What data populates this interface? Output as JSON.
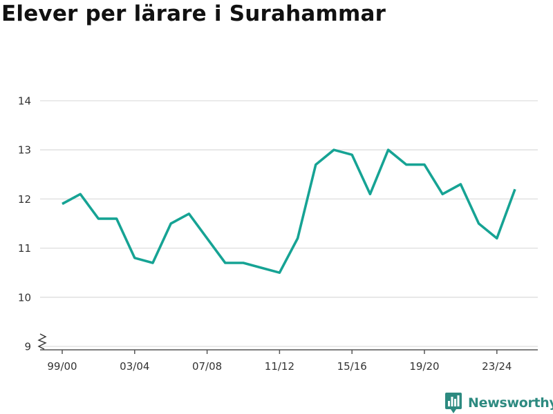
{
  "chart_data": {
    "type": "line",
    "title": "Elever per lärare i Surahammar",
    "xlabel": "",
    "ylabel": "",
    "x_tick_labels": [
      "99/00",
      "03/04",
      "07/08",
      "11/12",
      "15/16",
      "19/20",
      "23/24"
    ],
    "y_ticks": [
      9,
      10,
      11,
      12,
      13,
      14
    ],
    "ylim": [
      9,
      14
    ],
    "y_axis_break": true,
    "grid": true,
    "legend": "none",
    "series": [
      {
        "color": "#16a394",
        "points": [
          {
            "x": "99/00",
            "y": 11.9
          },
          {
            "x": "00/01",
            "y": 12.1
          },
          {
            "x": "01/02",
            "y": 11.6
          },
          {
            "x": "02/03",
            "y": 11.6
          },
          {
            "x": "03/04",
            "y": 10.8
          },
          {
            "x": "04/05",
            "y": 10.7
          },
          {
            "x": "05/06",
            "y": 11.5
          },
          {
            "x": "06/07",
            "y": 11.7
          },
          {
            "x": "07/08",
            "y": 11.2
          },
          {
            "x": "08/09",
            "y": 10.7
          },
          {
            "x": "09/10",
            "y": 10.7
          },
          {
            "x": "10/11",
            "y": 10.6
          },
          {
            "x": "11/12",
            "y": 10.5
          },
          {
            "x": "12/13",
            "y": 11.2
          },
          {
            "x": "13/14",
            "y": 12.7
          },
          {
            "x": "14/15",
            "y": 13.0
          },
          {
            "x": "15/16",
            "y": 12.9
          },
          {
            "x": "16/17",
            "y": 12.1
          },
          {
            "x": "17/18",
            "y": 13.0
          },
          {
            "x": "18/19",
            "y": 12.7
          },
          {
            "x": "19/20",
            "y": 12.7
          },
          {
            "x": "20/21",
            "y": 12.1
          },
          {
            "x": "21/22",
            "y": 12.3
          },
          {
            "x": "22/23",
            "y": 11.5
          },
          {
            "x": "23/24",
            "y": 11.2
          },
          {
            "x": "24/25",
            "y": 12.2
          }
        ]
      }
    ]
  },
  "brand": {
    "name": "Newsworthy",
    "logo_icon": "bar-chart-speech-bubble-icon",
    "color": "#2d8a80"
  },
  "colors": {
    "line": "#16a394",
    "grid": "#dddddd",
    "axis": "#555555",
    "text": "#333333",
    "title": "#111111"
  }
}
